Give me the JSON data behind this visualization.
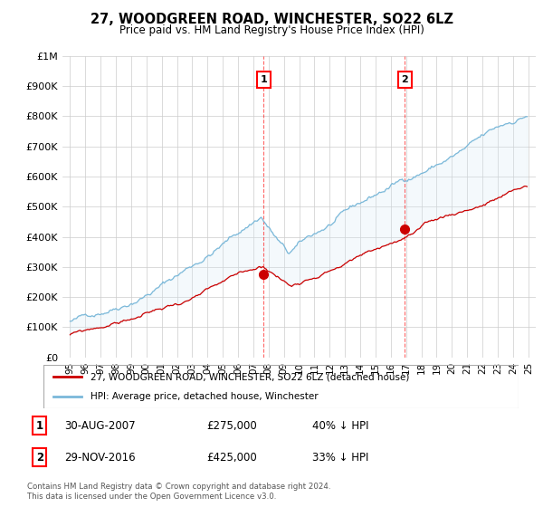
{
  "title": "27, WOODGREEN ROAD, WINCHESTER, SO22 6LZ",
  "subtitle": "Price paid vs. HM Land Registry's House Price Index (HPI)",
  "hpi_color": "#7ab8d9",
  "price_color": "#cc0000",
  "fill_color": "#d6eaf5",
  "marker1_x": 2007.67,
  "marker2_x": 2016.92,
  "marker1_y": 275000,
  "marker2_y": 425000,
  "legend_line1": "27, WOODGREEN ROAD, WINCHESTER, SO22 6LZ (detached house)",
  "legend_line2": "HPI: Average price, detached house, Winchester",
  "footnote": "Contains HM Land Registry data © Crown copyright and database right 2024.\nThis data is licensed under the Open Government Licence v3.0.",
  "ylim": [
    0,
    1000000
  ],
  "yticks": [
    0,
    100000,
    200000,
    300000,
    400000,
    500000,
    600000,
    700000,
    800000,
    900000,
    1000000
  ],
  "ytick_labels": [
    "£0",
    "£100K",
    "£200K",
    "£300K",
    "£400K",
    "£500K",
    "£600K",
    "£700K",
    "£800K",
    "£900K",
    "£1M"
  ],
  "xtick_years": [
    1995,
    1996,
    1997,
    1998,
    1999,
    2000,
    2001,
    2002,
    2003,
    2004,
    2005,
    2006,
    2007,
    2008,
    2009,
    2010,
    2011,
    2012,
    2013,
    2014,
    2015,
    2016,
    2017,
    2018,
    2019,
    2020,
    2021,
    2022,
    2023,
    2024,
    2025
  ],
  "xtick_labels": [
    "95",
    "96",
    "97",
    "98",
    "99",
    "00",
    "01",
    "02",
    "03",
    "04",
    "05",
    "06",
    "07",
    "08",
    "09",
    "10",
    "11",
    "12",
    "13",
    "14",
    "15",
    "16",
    "17",
    "18",
    "19",
    "20",
    "21",
    "22",
    "23",
    "24",
    "25"
  ]
}
